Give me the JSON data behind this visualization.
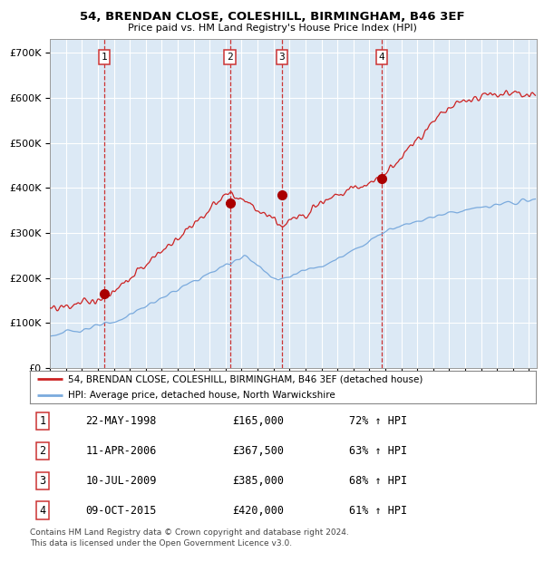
{
  "title": "54, BRENDAN CLOSE, COLESHILL, BIRMINGHAM, B46 3EF",
  "subtitle": "Price paid vs. HM Land Registry's House Price Index (HPI)",
  "ylabel_ticks": [
    "£0",
    "£100K",
    "£200K",
    "£300K",
    "£400K",
    "£500K",
    "£600K",
    "£700K"
  ],
  "ytick_values": [
    0,
    100000,
    200000,
    300000,
    400000,
    500000,
    600000,
    700000
  ],
  "ylim": [
    0,
    730000
  ],
  "xlim_start": 1995.0,
  "xlim_end": 2025.5,
  "background_color": "#dce9f5",
  "grid_color": "#ffffff",
  "sale_dates": [
    1998.38,
    2006.27,
    2009.52,
    2015.76
  ],
  "sale_prices": [
    165000,
    367500,
    385000,
    420000
  ],
  "sale_labels": [
    "1",
    "2",
    "3",
    "4"
  ],
  "legend_line1": "54, BRENDAN CLOSE, COLESHILL, BIRMINGHAM, B46 3EF (detached house)",
  "legend_line2": "HPI: Average price, detached house, North Warwickshire",
  "table_data": [
    [
      "1",
      "22-MAY-1998",
      "£165,000",
      "72% ↑ HPI"
    ],
    [
      "2",
      "11-APR-2006",
      "£367,500",
      "63% ↑ HPI"
    ],
    [
      "3",
      "10-JUL-2009",
      "£385,000",
      "68% ↑ HPI"
    ],
    [
      "4",
      "09-OCT-2015",
      "£420,000",
      "61% ↑ HPI"
    ]
  ],
  "footnote": "Contains HM Land Registry data © Crown copyright and database right 2024.\nThis data is licensed under the Open Government Licence v3.0.",
  "hpi_color": "#7aaadd",
  "price_color": "#cc2222",
  "dot_color": "#aa0000",
  "vline_color": "#cc3333"
}
